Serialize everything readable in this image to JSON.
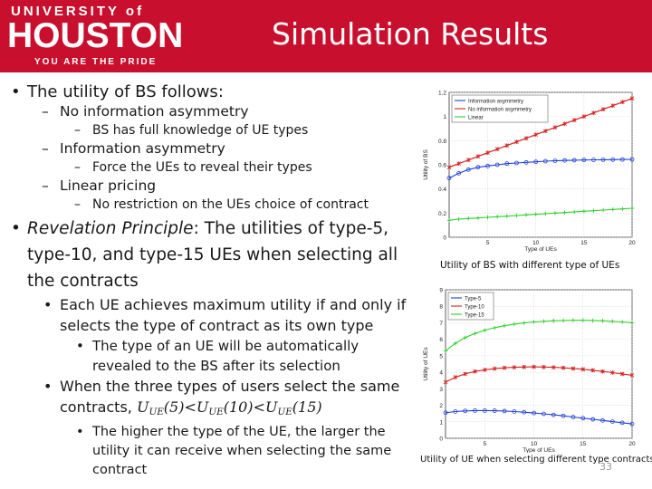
{
  "header": {
    "logo_line1": "UNIVERSITY of",
    "logo_line2": "HOUSTON",
    "logo_line3": "YOU ARE THE PRIDE",
    "title": "Simulation Results"
  },
  "bullets": {
    "b1": "The utility of BS follows:",
    "b1_1": "No information asymmetry",
    "b1_1_1": "BS has full knowledge of UE types",
    "b1_2": "Information asymmetry",
    "b1_2_1": "Force the UEs to reveal their types",
    "b1_3": "Linear pricing",
    "b1_3_1": "No restriction on the UEs choice of contract",
    "b2_em": "Revelation Principle",
    "b2_rest": ": The utilities of type-5, type-10, and type-15 UEs when selecting all the contracts",
    "b2_1": "Each UE achieves maximum utility if and only if selects the type of contract as its own type",
    "b2_1_1": "The type of an UE will be automatically revealed to the BS after its selection",
    "b2_2_pre": "When the three types of users select the same contracts, ",
    "b2_2_math": {
      "sym": "U",
      "sub": "UE",
      "a": "(5)<",
      "b": "(10)<",
      "c": "(15)"
    },
    "b2_2_1": "The higher the type of the UE, the larger the utility it can receive when selecting the same contract"
  },
  "captions": {
    "chart1": "Utility of BS with different type of UEs",
    "chart2": "Utility of UE when selecting different type contracts"
  },
  "page_number": "33",
  "chart_data": [
    {
      "type": "line",
      "xlabel": "Type of UEs",
      "ylabel": "Utility of BS",
      "xlim": [
        1,
        20
      ],
      "ylim": [
        0,
        1.2
      ],
      "xticks": [
        "5",
        "10",
        "15",
        "20"
      ],
      "yticks": [
        "0",
        "0.2",
        "0.4",
        "0.6",
        "0.8",
        "1",
        "1.2"
      ],
      "x": [
        1,
        2,
        3,
        4,
        5,
        6,
        7,
        8,
        9,
        10,
        11,
        12,
        13,
        14,
        15,
        16,
        17,
        18,
        19,
        20
      ],
      "legend": "top-left",
      "grid": true,
      "series": [
        {
          "name": "Information asymmetry",
          "color": "#1f3fd6",
          "marker": "circle",
          "values": [
            0.49,
            0.53,
            0.56,
            0.58,
            0.59,
            0.6,
            0.61,
            0.615,
            0.62,
            0.625,
            0.63,
            0.633,
            0.636,
            0.638,
            0.64,
            0.641,
            0.642,
            0.643,
            0.644,
            0.645
          ]
        },
        {
          "name": "No information asymmetry",
          "color": "#d42020",
          "marker": "star",
          "values": [
            0.58,
            0.61,
            0.64,
            0.67,
            0.7,
            0.73,
            0.76,
            0.79,
            0.82,
            0.85,
            0.88,
            0.91,
            0.94,
            0.97,
            1.0,
            1.03,
            1.06,
            1.09,
            1.12,
            1.15
          ]
        },
        {
          "name": "Linear",
          "color": "#2fcf2f",
          "marker": "plus",
          "values": [
            0.14,
            0.15,
            0.155,
            0.16,
            0.165,
            0.17,
            0.175,
            0.18,
            0.185,
            0.19,
            0.195,
            0.2,
            0.205,
            0.21,
            0.215,
            0.22,
            0.225,
            0.23,
            0.235,
            0.24
          ]
        }
      ]
    },
    {
      "type": "line",
      "xlabel": "Type of UEs",
      "ylabel": "Utility of UEs",
      "xlim": [
        1,
        20
      ],
      "ylim": [
        0,
        9
      ],
      "xticks": [
        "5",
        "10",
        "15",
        "20"
      ],
      "yticks": [
        "0",
        "1",
        "2",
        "3",
        "4",
        "5",
        "6",
        "7",
        "8",
        "9"
      ],
      "x": [
        1,
        2,
        3,
        4,
        5,
        6,
        7,
        8,
        9,
        10,
        11,
        12,
        13,
        14,
        15,
        16,
        17,
        18,
        19,
        20
      ],
      "legend": "top-left",
      "grid": true,
      "series": [
        {
          "name": "Type-5",
          "color": "#1f3fd6",
          "marker": "circle",
          "values": [
            1.55,
            1.62,
            1.66,
            1.68,
            1.68,
            1.67,
            1.65,
            1.62,
            1.58,
            1.53,
            1.48,
            1.42,
            1.36,
            1.29,
            1.22,
            1.15,
            1.08,
            1.01,
            0.94,
            0.87
          ]
        },
        {
          "name": "Type-10",
          "color": "#d42020",
          "marker": "star",
          "values": [
            3.4,
            3.7,
            3.9,
            4.05,
            4.15,
            4.22,
            4.27,
            4.3,
            4.32,
            4.33,
            4.32,
            4.3,
            4.27,
            4.23,
            4.18,
            4.12,
            4.05,
            3.98,
            3.9,
            3.82
          ]
        },
        {
          "name": "Type-15",
          "color": "#2fcf2f",
          "marker": "plus",
          "values": [
            5.3,
            5.75,
            6.1,
            6.35,
            6.55,
            6.7,
            6.82,
            6.92,
            6.99,
            7.05,
            7.09,
            7.12,
            7.14,
            7.15,
            7.15,
            7.14,
            7.12,
            7.09,
            7.05,
            7.0
          ]
        }
      ]
    }
  ]
}
